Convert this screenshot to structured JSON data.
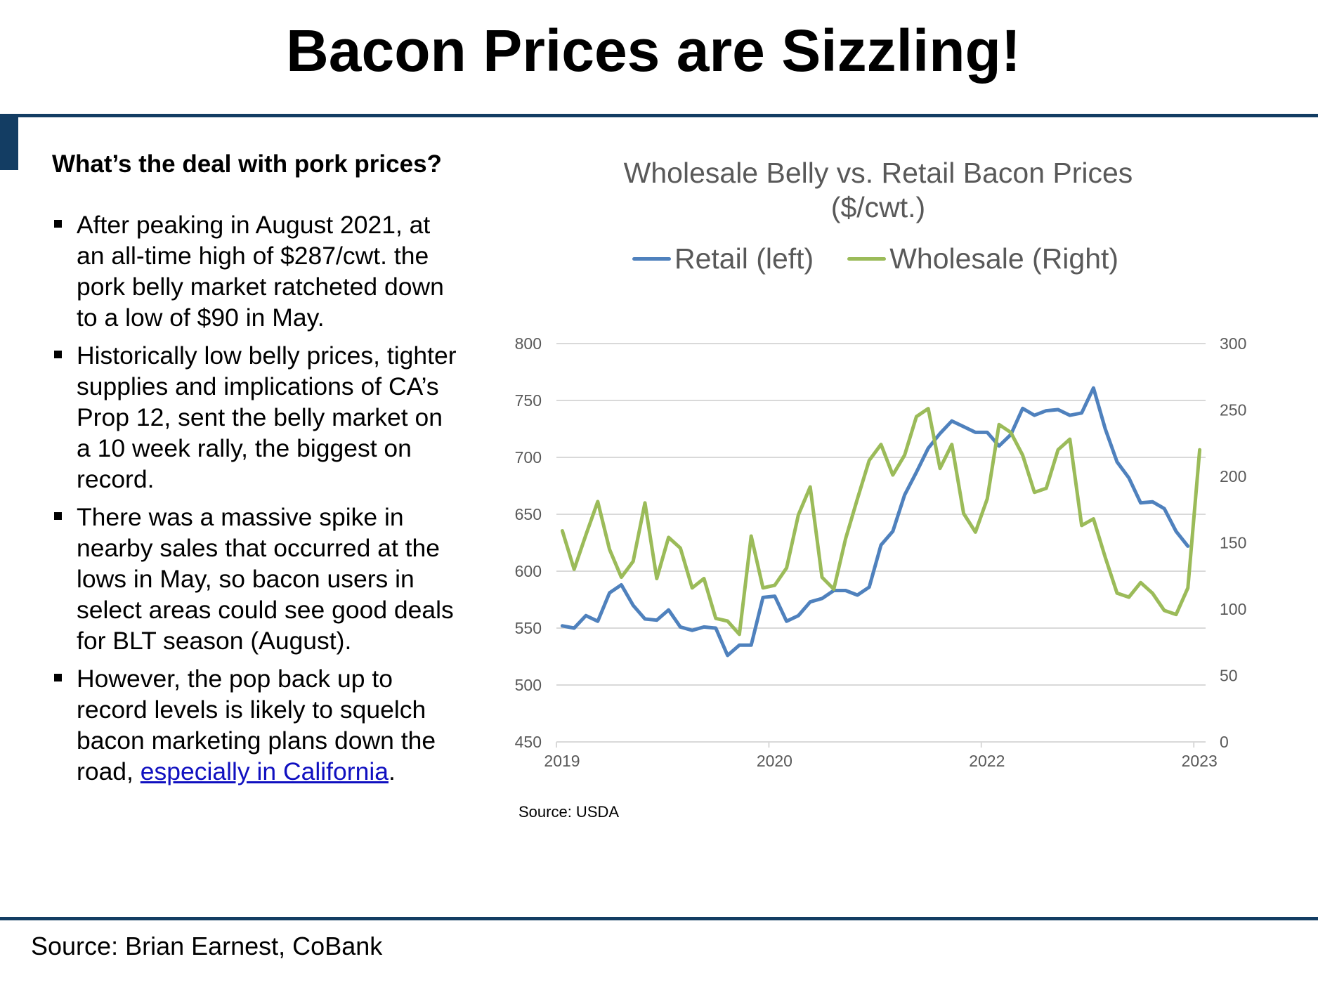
{
  "slide": {
    "title": "Bacon Prices are Sizzling!",
    "footer_source": "Source: Brian Earnest, CoBank",
    "accent_color": "#133d63"
  },
  "left_panel": {
    "heading": "What’s the deal with pork prices?",
    "bullets": [
      {
        "text": "After peaking in August 2021, at an all-time high of $287/cwt. the pork belly market ratcheted down to a low of $90 in May."
      },
      {
        "text": "Historically low belly prices, tighter supplies and implications of CA’s Prop 12, sent the belly market on a 10 week rally, the biggest on record."
      },
      {
        "text": "There was a massive spike in nearby sales that occurred at the lows in May, so bacon users in select areas could see good deals for BLT season (August)."
      },
      {
        "text_before": "However, the pop back up to record levels is likely to squelch bacon marketing plans down the road, ",
        "link_text": "especially in California",
        "text_after": "."
      }
    ]
  },
  "chart_source": "Source: USDA",
  "chart_data": {
    "type": "line",
    "title": "Wholesale Belly vs. Retail Bacon Prices ($/cwt.)",
    "title_lines": [
      "Wholesale Belly vs. Retail Bacon Prices",
      "($/cwt.)"
    ],
    "xlabel": "",
    "ylabel": "",
    "x_count": 55,
    "x_tick_labels": [
      {
        "index": 0,
        "label": "2019"
      },
      {
        "index": 18,
        "label": "2020"
      },
      {
        "index": 36,
        "label": "2022"
      },
      {
        "index": 54,
        "label": "2023"
      }
    ],
    "y_left": {
      "min": 450,
      "max": 800,
      "step": 50,
      "ticks": [
        "800",
        "750",
        "700",
        "650",
        "600",
        "550",
        "500",
        "450"
      ]
    },
    "y_right": {
      "min": 0,
      "max": 300,
      "step": 50,
      "ticks": [
        "300",
        "250",
        "200",
        "150",
        "100",
        "50",
        "0"
      ]
    },
    "grid": true,
    "legend_position": "top",
    "series": [
      {
        "name": "Retail (left)",
        "axis": "left",
        "color": "#4f81bd",
        "values": [
          552,
          550,
          561,
          556,
          581,
          588,
          570,
          558,
          557,
          566,
          551,
          548,
          551,
          550,
          526,
          535,
          535,
          577,
          578,
          556,
          561,
          573,
          576,
          583,
          583,
          579,
          586,
          623,
          635,
          667,
          687,
          708,
          721,
          732,
          727,
          722,
          722,
          710,
          720,
          743,
          737,
          741,
          742,
          737,
          739,
          761,
          725,
          696,
          682,
          660,
          661,
          655,
          635,
          622
        ]
      },
      {
        "name": "Wholesale (Right)",
        "axis": "right",
        "color": "#9bbb59",
        "values": [
          159,
          130,
          156,
          181,
          145,
          124,
          136,
          180,
          123,
          154,
          146,
          116,
          123,
          93,
          91,
          81,
          155,
          116,
          118,
          131,
          171,
          192,
          124,
          115,
          153,
          183,
          212,
          224,
          201,
          216,
          245,
          251,
          206,
          224,
          172,
          158,
          183,
          239,
          233,
          216,
          188,
          191,
          220,
          228,
          163,
          168,
          139,
          112,
          109,
          120,
          112,
          99,
          96,
          116,
          220
        ]
      }
    ]
  }
}
